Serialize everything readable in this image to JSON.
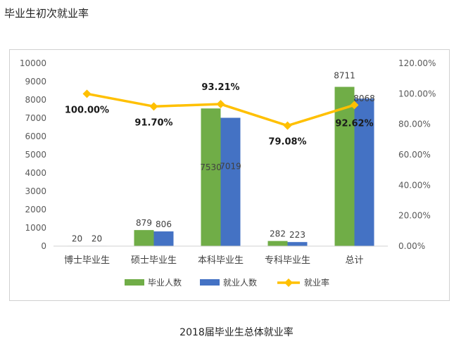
{
  "page": {
    "heading": "毕业生初次就业率",
    "caption": "2018届毕业生总体就业率"
  },
  "chart_data": {
    "type": "bar",
    "categories": [
      "博士毕业生",
      "硕士毕业生",
      "本科毕业生",
      "专科毕业生",
      "总计"
    ],
    "series": [
      {
        "name": "毕业人数",
        "type": "bar",
        "axis": "left",
        "color": "#70ad47",
        "values": [
          20,
          879,
          7530,
          282,
          8711
        ],
        "labels": [
          "20",
          "879",
          "7530",
          "282",
          "8711"
        ]
      },
      {
        "name": "就业人数",
        "type": "bar",
        "axis": "left",
        "color": "#4472c4",
        "values": [
          20,
          806,
          7019,
          223,
          8068
        ],
        "labels": [
          "20",
          "806",
          "7019",
          "223",
          "8068"
        ]
      },
      {
        "name": "就业率",
        "type": "line",
        "axis": "right",
        "color": "#ffc000",
        "values": [
          100.0,
          91.7,
          93.21,
          79.08,
          92.62
        ],
        "labels": [
          "100.00%",
          "91.70%",
          "93.21%",
          "79.08%",
          "92.62%"
        ]
      }
    ],
    "y_left": {
      "min": 0,
      "max": 10000,
      "step": 1000,
      "ticks": [
        "0",
        "1000",
        "2000",
        "3000",
        "4000",
        "5000",
        "6000",
        "7000",
        "8000",
        "9000",
        "10000"
      ]
    },
    "y_right": {
      "min": 0,
      "max": 120,
      "step": 20,
      "ticks": [
        "0.00%",
        "20.00%",
        "40.00%",
        "60.00%",
        "80.00%",
        "100.00%",
        "120.00%"
      ]
    },
    "legend_position": "bottom",
    "grid": false
  }
}
